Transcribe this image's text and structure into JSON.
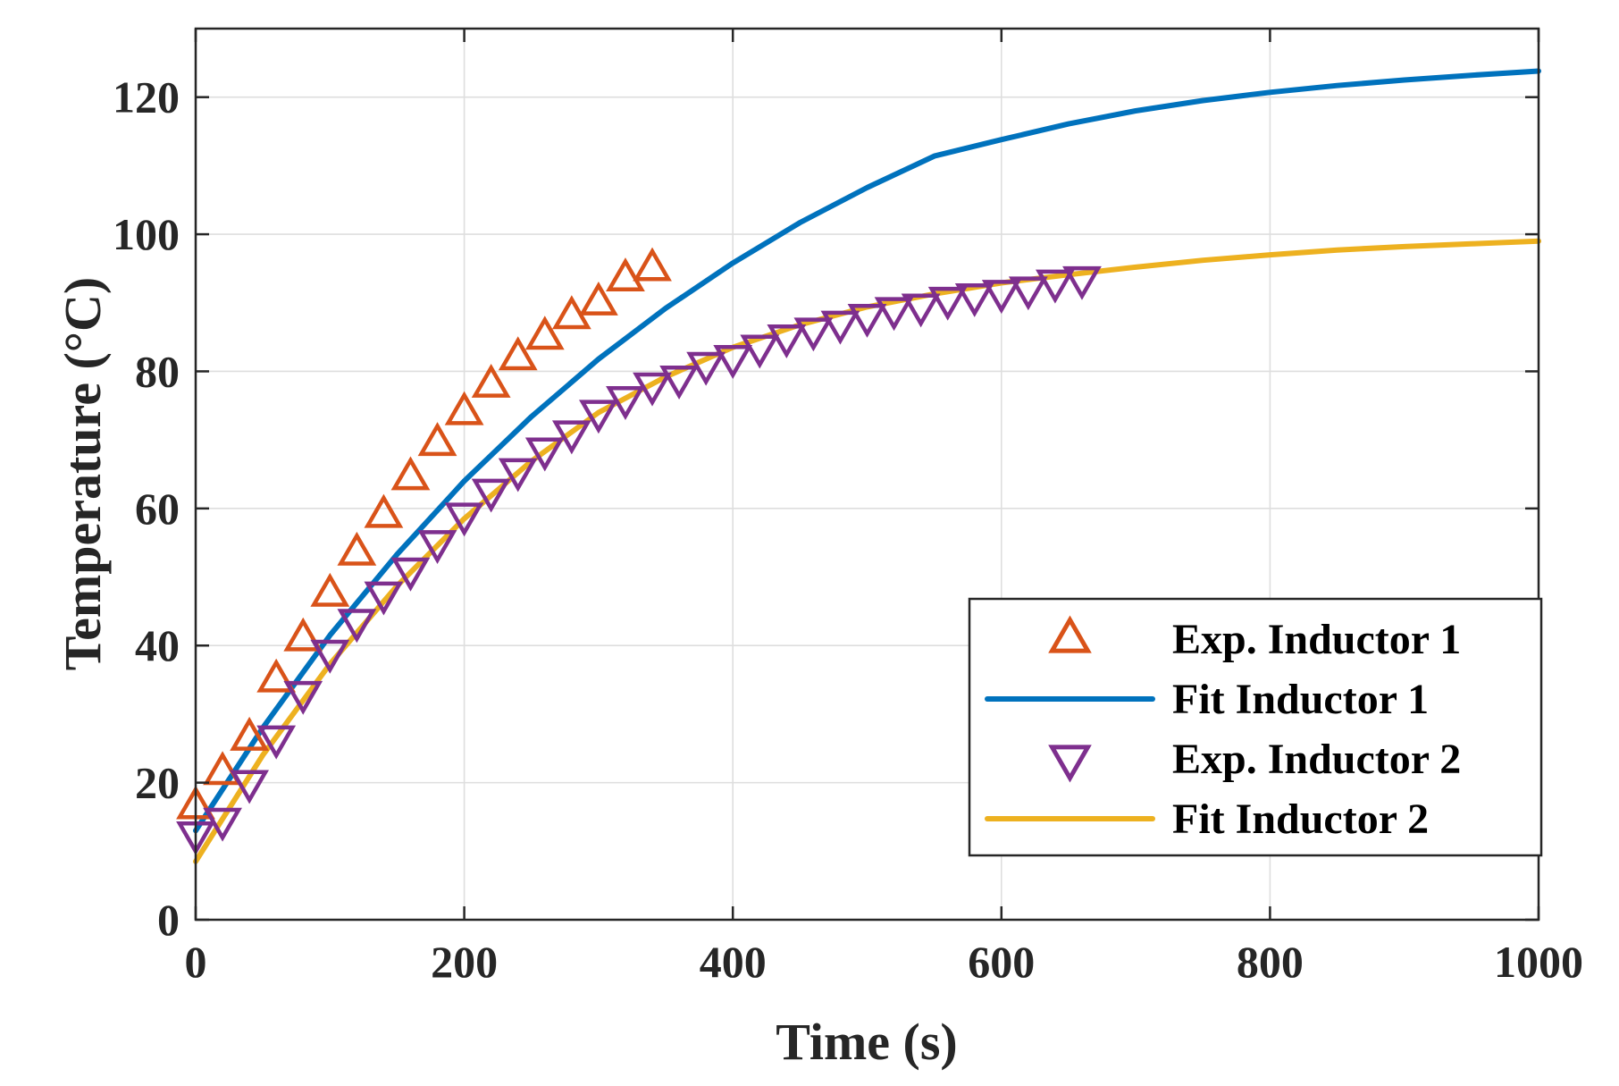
{
  "chart_data": {
    "type": "line",
    "title": "",
    "xlabel": "Time (s)",
    "ylabel": "Temperature (°C)",
    "xlim": [
      0,
      1000
    ],
    "ylim": [
      0,
      130
    ],
    "xticks": [
      0,
      200,
      400,
      600,
      800,
      1000
    ],
    "yticks": [
      0,
      20,
      40,
      60,
      80,
      100,
      120
    ],
    "xtick_labels": [
      "0",
      "200",
      "400",
      "600",
      "800",
      "1000"
    ],
    "ytick_labels": [
      "0",
      "20",
      "40",
      "60",
      "80",
      "100",
      "120"
    ],
    "grid": true,
    "legend_position": "bottom-right",
    "series": [
      {
        "name": "Exp. Inductor 1",
        "kind": "scatter",
        "marker": "triangle-up",
        "color": "#D95319",
        "x": [
          0,
          20,
          40,
          60,
          80,
          100,
          120,
          140,
          160,
          180,
          200,
          220,
          240,
          260,
          280,
          300,
          320,
          340
        ],
        "y": [
          16.5,
          21.5,
          26.5,
          35,
          41,
          47.5,
          53.5,
          59,
          64.5,
          69.5,
          74,
          78,
          82,
          85,
          88,
          90,
          93.5,
          95
        ]
      },
      {
        "name": "Fit Inductor 1",
        "kind": "line",
        "color": "#0072BD",
        "x": [
          0,
          50,
          100,
          150,
          200,
          250,
          300,
          350,
          400,
          450,
          500,
          550,
          600,
          650,
          700,
          750,
          800,
          850,
          900,
          950,
          1000
        ],
        "y": [
          13,
          28,
          41.5,
          53.3,
          64,
          73.4,
          81.8,
          89.2,
          95.8,
          101.7,
          106.8,
          111.4,
          113.8,
          116.1,
          118,
          119.5,
          120.7,
          121.7,
          122.5,
          123.2,
          123.8
        ]
      },
      {
        "name": "Exp. Inductor 2",
        "kind": "scatter",
        "marker": "triangle-down",
        "color": "#7E2F8E",
        "x": [
          0,
          20,
          40,
          60,
          80,
          100,
          120,
          140,
          160,
          180,
          200,
          220,
          240,
          260,
          280,
          300,
          320,
          340,
          360,
          380,
          400,
          420,
          440,
          460,
          480,
          500,
          520,
          540,
          560,
          580,
          600,
          620,
          640,
          660
        ],
        "y": [
          12.5,
          14.5,
          20,
          26.5,
          33,
          39,
          43.5,
          47.5,
          51,
          55,
          59,
          62.5,
          65.5,
          68.5,
          71,
          74,
          76,
          78,
          79,
          81,
          82,
          83.5,
          85,
          86,
          87,
          88,
          89,
          89.5,
          90.5,
          91,
          91.5,
          92,
          93,
          93.5
        ]
      },
      {
        "name": "Fit Inductor 2",
        "kind": "line",
        "color": "#EDB120",
        "x": [
          0,
          50,
          100,
          150,
          200,
          250,
          300,
          350,
          400,
          450,
          500,
          550,
          600,
          650,
          700,
          750,
          800,
          850,
          900,
          950,
          1000
        ],
        "y": [
          8.5,
          24,
          37.3,
          48.7,
          58.5,
          66.9,
          74,
          79.2,
          83.5,
          86.8,
          89.4,
          91.3,
          92.9,
          94.1,
          95.2,
          96.2,
          97,
          97.7,
          98.2,
          98.6,
          99
        ]
      }
    ]
  }
}
